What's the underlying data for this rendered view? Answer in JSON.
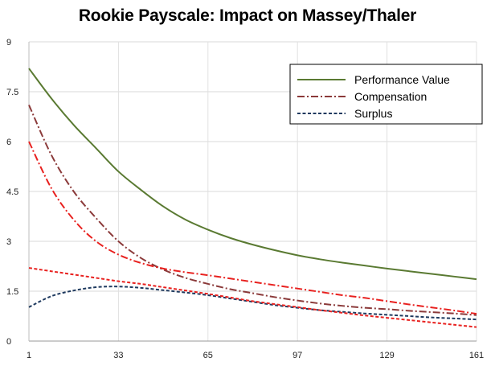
{
  "chart_data": {
    "type": "line",
    "title": "Rookie Payscale: Impact on Massey/Thaler",
    "xlabel": "",
    "ylabel": "",
    "xlim": [
      1,
      161
    ],
    "ylim": [
      0,
      9
    ],
    "x_ticks": [
      1,
      33,
      65,
      97,
      129,
      161
    ],
    "y_ticks": [
      0,
      1.5,
      3,
      4.5,
      6,
      7.5,
      9
    ],
    "y_tick_labels": [
      "0",
      "1.5",
      "3",
      "4.5",
      "6",
      "7.5",
      "9"
    ],
    "grid": true,
    "legend_position": "top-right",
    "x": [
      1,
      9,
      17,
      25,
      33,
      41,
      49,
      57,
      65,
      73,
      81,
      89,
      97,
      105,
      113,
      121,
      129,
      137,
      145,
      153,
      161
    ],
    "series": [
      {
        "name": "Performance Value",
        "color": "#5a7a32",
        "dash": "solid",
        "in_legend": true,
        "values": [
          8.2,
          7.3,
          6.5,
          5.8,
          5.1,
          4.55,
          4.05,
          3.65,
          3.35,
          3.1,
          2.9,
          2.73,
          2.58,
          2.46,
          2.36,
          2.27,
          2.18,
          2.1,
          2.02,
          1.94,
          1.86
        ]
      },
      {
        "name": "Compensation",
        "color": "#8b3a3a",
        "dash": "dashdot",
        "in_legend": true,
        "values": [
          7.1,
          5.6,
          4.5,
          3.7,
          3.0,
          2.5,
          2.15,
          1.9,
          1.72,
          1.56,
          1.44,
          1.32,
          1.22,
          1.13,
          1.06,
          1.0,
          0.96,
          0.91,
          0.87,
          0.83,
          0.78
        ]
      },
      {
        "name": "Surplus",
        "color": "#1f3a5f",
        "dash": "dashed",
        "in_legend": true,
        "values": [
          1.02,
          1.35,
          1.52,
          1.62,
          1.64,
          1.6,
          1.53,
          1.46,
          1.38,
          1.28,
          1.18,
          1.08,
          1.0,
          0.93,
          0.88,
          0.83,
          0.79,
          0.75,
          0.71,
          0.68,
          0.65
        ]
      },
      {
        "name": "",
        "color": "#e8211f",
        "dash": "dashdot",
        "in_legend": false,
        "values": [
          6.0,
          4.6,
          3.65,
          3.0,
          2.6,
          2.35,
          2.18,
          2.07,
          1.98,
          1.88,
          1.78,
          1.68,
          1.58,
          1.48,
          1.38,
          1.3,
          1.2,
          1.1,
          1.01,
          0.92,
          0.82
        ]
      },
      {
        "name": "",
        "color": "#e8211f",
        "dash": "dashed",
        "in_legend": false,
        "values": [
          2.2,
          2.1,
          2.0,
          1.9,
          1.8,
          1.72,
          1.62,
          1.52,
          1.42,
          1.31,
          1.2,
          1.11,
          1.02,
          0.93,
          0.85,
          0.77,
          0.7,
          0.63,
          0.56,
          0.49,
          0.42
        ]
      }
    ]
  }
}
